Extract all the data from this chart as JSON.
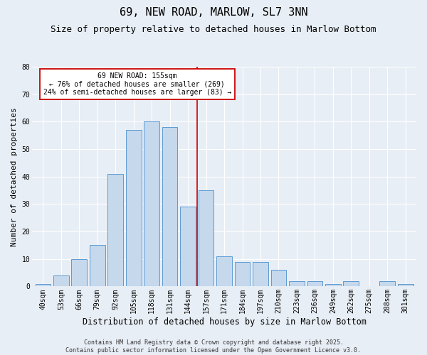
{
  "title": "69, NEW ROAD, MARLOW, SL7 3NN",
  "subtitle": "Size of property relative to detached houses in Marlow Bottom",
  "xlabel": "Distribution of detached houses by size in Marlow Bottom",
  "ylabel": "Number of detached properties",
  "categories": [
    "40sqm",
    "53sqm",
    "66sqm",
    "79sqm",
    "92sqm",
    "105sqm",
    "118sqm",
    "131sqm",
    "144sqm",
    "157sqm",
    "171sqm",
    "184sqm",
    "197sqm",
    "210sqm",
    "223sqm",
    "236sqm",
    "249sqm",
    "262sqm",
    "275sqm",
    "288sqm",
    "301sqm"
  ],
  "values": [
    1,
    4,
    10,
    15,
    41,
    57,
    60,
    58,
    29,
    35,
    11,
    9,
    9,
    6,
    2,
    2,
    1,
    2,
    0,
    2,
    1
  ],
  "bar_color": "#c5d8ec",
  "bar_edge_color": "#5b9bd5",
  "vline_x_idx": 8.5,
  "annotation_text": "69 NEW ROAD: 155sqm\n← 76% of detached houses are smaller (269)\n24% of semi-detached houses are larger (83) →",
  "annotation_box_color": "#ffffff",
  "annotation_box_edge_color": "#cc0000",
  "vline_color": "#cc0000",
  "ylim": [
    0,
    80
  ],
  "yticks": [
    0,
    10,
    20,
    30,
    40,
    50,
    60,
    70,
    80
  ],
  "background_color": "#e8eef5",
  "plot_bg_color": "#e8eef5",
  "grid_color": "#ffffff",
  "footer": "Contains HM Land Registry data © Crown copyright and database right 2025.\nContains public sector information licensed under the Open Government Licence v3.0.",
  "title_fontsize": 11,
  "subtitle_fontsize": 9,
  "xlabel_fontsize": 8.5,
  "ylabel_fontsize": 8,
  "tick_fontsize": 7,
  "annotation_fontsize": 7,
  "footer_fontsize": 6
}
